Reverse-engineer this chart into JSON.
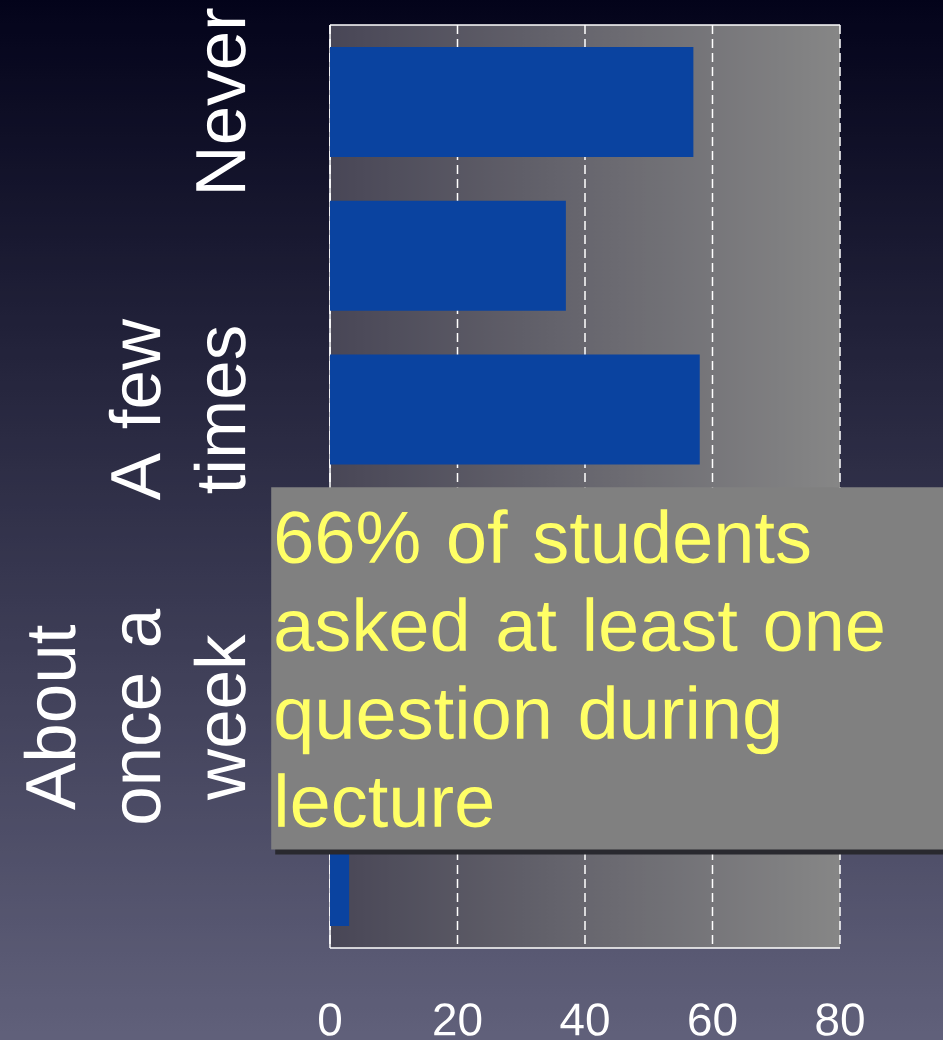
{
  "chart_data": {
    "type": "bar",
    "orientation": "horizontal",
    "categories": [
      "Never",
      null,
      "A few times",
      null,
      "About once a week",
      null
    ],
    "values": [
      57,
      37,
      58,
      null,
      null,
      3
    ],
    "color": "#0a43a0",
    "xlim": [
      0,
      80
    ],
    "xticks": [
      0,
      20,
      40,
      60,
      80
    ],
    "grid": "x",
    "annotations": [
      "66% of students asked at least one question during lecture"
    ]
  }
}
